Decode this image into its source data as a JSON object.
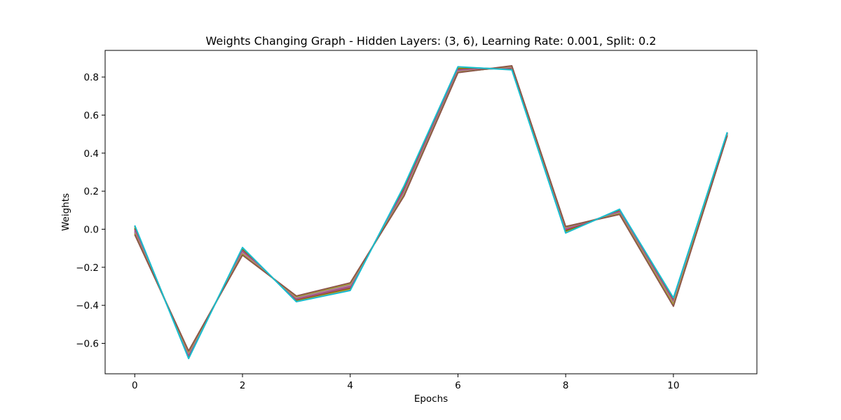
{
  "chart_data": {
    "type": "line",
    "title": "Weights Changing Graph - Hidden Layers: (3, 6), Learning Rate: 0.001, Split: 0.2",
    "xlabel": "Epochs",
    "ylabel": "Weights",
    "xlim": [
      -0.55,
      11.55
    ],
    "ylim": [
      -0.76,
      0.94
    ],
    "x_ticks": [
      0,
      2,
      4,
      6,
      8,
      10
    ],
    "y_ticks": [
      -0.6,
      -0.4,
      -0.2,
      0.0,
      0.2,
      0.4,
      0.6,
      0.8
    ],
    "grid": false,
    "legend": "none",
    "x": [
      0,
      1,
      2,
      3,
      4,
      5,
      6,
      7,
      8,
      9,
      10,
      11
    ],
    "series": [
      {
        "color": "#1f77b4",
        "values": [
          0.018,
          -0.676,
          -0.1,
          -0.378,
          -0.318,
          0.225,
          0.851,
          0.841,
          -0.018,
          0.103,
          -0.365,
          0.508
        ]
      },
      {
        "color": "#ff7f0e",
        "values": [
          0.012,
          -0.672,
          -0.104,
          -0.375,
          -0.314,
          0.219,
          0.847,
          0.843,
          -0.013,
          0.1,
          -0.369,
          0.507
        ]
      },
      {
        "color": "#2ca02c",
        "values": [
          0.006,
          -0.668,
          -0.108,
          -0.372,
          -0.31,
          0.213,
          0.843,
          0.845,
          -0.008,
          0.097,
          -0.373,
          0.505
        ]
      },
      {
        "color": "#d62728",
        "values": [
          0.0,
          -0.664,
          -0.112,
          -0.369,
          -0.306,
          0.207,
          0.839,
          0.847,
          -0.003,
          0.094,
          -0.377,
          0.504
        ]
      },
      {
        "color": "#9467bd",
        "values": [
          -0.006,
          -0.66,
          -0.116,
          -0.366,
          -0.302,
          0.201,
          0.835,
          0.849,
          0.002,
          0.091,
          -0.381,
          0.502
        ]
      },
      {
        "color": "#8c564b",
        "values": [
          -0.012,
          -0.656,
          -0.12,
          -0.363,
          -0.298,
          0.195,
          0.831,
          0.851,
          0.006,
          0.088,
          -0.385,
          0.5
        ]
      },
      {
        "color": "#e377c2",
        "values": [
          -0.016,
          -0.652,
          -0.124,
          -0.36,
          -0.294,
          0.19,
          0.829,
          0.853,
          0.008,
          0.086,
          -0.389,
          0.498
        ]
      },
      {
        "color": "#7f7f7f",
        "values": [
          -0.02,
          -0.648,
          -0.128,
          -0.357,
          -0.29,
          0.185,
          0.827,
          0.855,
          0.01,
          0.084,
          -0.393,
          0.496
        ]
      },
      {
        "color": "#bcbd22",
        "values": [
          -0.024,
          -0.644,
          -0.132,
          -0.354,
          -0.286,
          0.18,
          0.825,
          0.857,
          0.012,
          0.081,
          -0.398,
          0.494
        ]
      },
      {
        "color": "#8c564b",
        "values": [
          -0.028,
          -0.64,
          -0.136,
          -0.351,
          -0.282,
          0.175,
          0.823,
          0.859,
          0.014,
          0.078,
          -0.405,
          0.492
        ]
      },
      {
        "color": "#17becf",
        "values": [
          0.02,
          -0.68,
          -0.096,
          -0.381,
          -0.322,
          0.228,
          0.854,
          0.838,
          -0.02,
          0.105,
          -0.361,
          0.51
        ]
      }
    ]
  }
}
